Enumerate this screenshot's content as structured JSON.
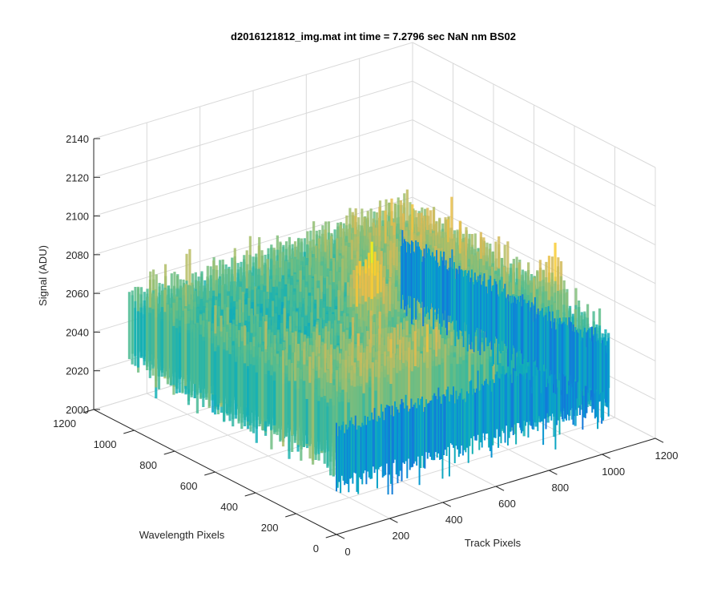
{
  "chart_data": {
    "type": "surface",
    "title": "d2016121812_img.mat int time = 7.2796 sec  NaN nm BS02",
    "xlabel": "Track Pixels",
    "ylabel": "Wavelength Pixels",
    "zlabel": "Signal (ADU)",
    "xlim": [
      0,
      1200
    ],
    "ylim": [
      0,
      1200
    ],
    "zlim": [
      2000,
      2140
    ],
    "x_ticks": [
      "0",
      "200",
      "400",
      "600",
      "800",
      "1000",
      "1200"
    ],
    "y_ticks": [
      "0",
      "200",
      "400",
      "600",
      "800",
      "1000",
      "1200"
    ],
    "z_ticks": [
      "2000",
      "2020",
      "2040",
      "2060",
      "2080",
      "2100",
      "2120",
      "2140"
    ],
    "surface": {
      "x_range": [
        0,
        1024
      ],
      "y_range": [
        0,
        1024
      ],
      "mean_signal": 2050,
      "signal_range": [
        2010,
        2125
      ],
      "peak_locations": [
        {
          "x": 500,
          "y": 500,
          "z": 2125
        },
        {
          "x": 1000,
          "y": 250,
          "z": 2095
        }
      ],
      "colormap": "parula"
    },
    "grid": true
  }
}
